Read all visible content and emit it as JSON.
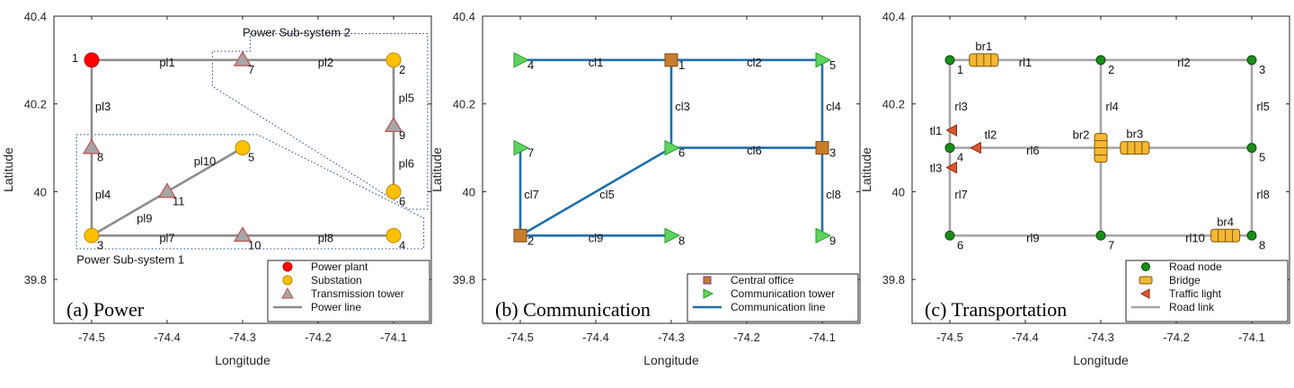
{
  "x_axis_label": "Longitude",
  "y_axis_label": "Latitude",
  "x_ticks": [
    -74.5,
    -74.4,
    -74.3,
    -74.2,
    -74.1
  ],
  "x_tick_labels": [
    "-74.5",
    "-74.4",
    "-74.3",
    "-74.2",
    "-74.1"
  ],
  "y_ticks": [
    40.4,
    40.2,
    40.0,
    39.8
  ],
  "y_tick_labels": [
    "40.4",
    "40.2",
    "40",
    "39.8"
  ],
  "x_range": [
    -74.55,
    -74.05
  ],
  "y_range": [
    39.7,
    40.4
  ],
  "colors": {
    "axis": "#262626",
    "power_line": "#8c8c8c",
    "plant": "#ff0000",
    "substation": "#ffc000",
    "tower_fill": "#a6a6a6",
    "tower_edge": "#c0504d",
    "comm_line": "#1f6fad",
    "central_office": "#c87d2c",
    "central_edge": "#7030a0",
    "comm_tower": "#5fd35f",
    "road_line": "#a6a6a6",
    "road_node": "#1a8c1a",
    "bridge": "#f4b183",
    "bridge_fill": "#f6b732",
    "traffic": "#e0562c",
    "subsystem_border": "#1f3f8f"
  },
  "panels": [
    {
      "id": "power",
      "caption": "(a) Power",
      "legend": [
        {
          "marker": "circle-red",
          "label": "Power plant"
        },
        {
          "marker": "circle-yellow",
          "label": "Substation"
        },
        {
          "marker": "triangle",
          "label": "Transmission tower"
        },
        {
          "marker": "line-gray",
          "label": "Power line"
        }
      ],
      "nodes": [
        {
          "id": "1",
          "type": "plant",
          "lon": -74.5,
          "lat": 40.3,
          "label_side": "left"
        },
        {
          "id": "2",
          "type": "substation",
          "lon": -74.1,
          "lat": 40.3,
          "label_side": "below-right"
        },
        {
          "id": "3",
          "type": "substation",
          "lon": -74.5,
          "lat": 39.9,
          "label_side": "below-right"
        },
        {
          "id": "4",
          "type": "substation",
          "lon": -74.1,
          "lat": 39.9,
          "label_side": "below-right"
        },
        {
          "id": "5",
          "type": "substation",
          "lon": -74.3,
          "lat": 40.1,
          "label_side": "below-right"
        },
        {
          "id": "6",
          "type": "substation",
          "lon": -74.1,
          "lat": 40.0,
          "label_side": "below-right"
        },
        {
          "id": "7",
          "type": "tower",
          "lon": -74.3,
          "lat": 40.3,
          "label_side": "below-right"
        },
        {
          "id": "8",
          "type": "tower",
          "lon": -74.5,
          "lat": 40.1,
          "label_side": "below-right"
        },
        {
          "id": "9",
          "type": "tower",
          "lon": -74.1,
          "lat": 40.15,
          "label_side": "below-right"
        },
        {
          "id": "10",
          "type": "tower",
          "lon": -74.3,
          "lat": 39.9,
          "label_side": "below-right"
        },
        {
          "id": "11",
          "type": "tower",
          "lon": -74.4,
          "lat": 40.0,
          "label_side": "below-right"
        }
      ],
      "links": [
        {
          "id": "pl1",
          "from": "1",
          "to": "7"
        },
        {
          "id": "pl2",
          "from": "7",
          "to": "2"
        },
        {
          "id": "pl3",
          "from": "1",
          "to": "8"
        },
        {
          "id": "pl4",
          "from": "8",
          "to": "3"
        },
        {
          "id": "pl5",
          "from": "2",
          "to": "9"
        },
        {
          "id": "pl6",
          "from": "9",
          "to": "6"
        },
        {
          "id": "pl7",
          "from": "3",
          "to": "10"
        },
        {
          "id": "pl8",
          "from": "10",
          "to": "4"
        },
        {
          "id": "pl9",
          "from": "3",
          "to": "11"
        },
        {
          "id": "pl10",
          "from": "11",
          "to": "5"
        }
      ],
      "link_labels": [
        {
          "text": "pl1",
          "lon": -74.4,
          "lat": 40.285
        },
        {
          "text": "pl2",
          "lon": -74.19,
          "lat": 40.285
        },
        {
          "text": "pl3",
          "lon": -74.485,
          "lat": 40.185
        },
        {
          "text": "pl4",
          "lon": -74.485,
          "lat": 39.985
        },
        {
          "text": "pl5",
          "lon": -74.083,
          "lat": 40.205
        },
        {
          "text": "pl6",
          "lon": -74.083,
          "lat": 40.055
        },
        {
          "text": "pl7",
          "lon": -74.4,
          "lat": 39.885
        },
        {
          "text": "pl8",
          "lon": -74.19,
          "lat": 39.885
        },
        {
          "text": "pl9",
          "lon": -74.43,
          "lat": 39.93
        },
        {
          "text": "pl10",
          "lon": -74.35,
          "lat": 40.06
        }
      ],
      "subsystems": [
        {
          "label": "Power Sub-system 2"
        },
        {
          "label": "Power Sub-system 1"
        }
      ]
    },
    {
      "id": "communication",
      "caption": "(b) Communication",
      "legend": [
        {
          "marker": "square-brown",
          "label": "Central office"
        },
        {
          "marker": "tri-right-green",
          "label": "Communication tower"
        },
        {
          "marker": "line-blue",
          "label": "Communication line"
        }
      ],
      "nodes": [
        {
          "id": "1",
          "type": "central",
          "lon": -74.3,
          "lat": 40.3
        },
        {
          "id": "2",
          "type": "central",
          "lon": -74.5,
          "lat": 39.9
        },
        {
          "id": "3",
          "type": "central",
          "lon": -74.1,
          "lat": 40.1
        },
        {
          "id": "4",
          "type": "ctower",
          "lon": -74.5,
          "lat": 40.3
        },
        {
          "id": "5",
          "type": "ctower",
          "lon": -74.1,
          "lat": 40.3
        },
        {
          "id": "6",
          "type": "ctower",
          "lon": -74.3,
          "lat": 40.1
        },
        {
          "id": "7",
          "type": "ctower",
          "lon": -74.5,
          "lat": 40.1
        },
        {
          "id": "8",
          "type": "ctower",
          "lon": -74.3,
          "lat": 39.9
        },
        {
          "id": "9",
          "type": "ctower",
          "lon": -74.1,
          "lat": 39.9
        }
      ],
      "links": [
        {
          "id": "cl1",
          "from": "4",
          "to": "1"
        },
        {
          "id": "cl2",
          "from": "1",
          "to": "5"
        },
        {
          "id": "cl3",
          "from": "1",
          "to": "6"
        },
        {
          "id": "cl4",
          "from": "5",
          "to": "3"
        },
        {
          "id": "cl5",
          "from": "2",
          "to": "6"
        },
        {
          "id": "cl6",
          "from": "6",
          "to": "3"
        },
        {
          "id": "cl7",
          "from": "2",
          "to": "7"
        },
        {
          "id": "cl8",
          "from": "3",
          "to": "9"
        },
        {
          "id": "cl9",
          "from": "2",
          "to": "8"
        }
      ],
      "link_labels": [
        {
          "text": "cl1",
          "lon": -74.4,
          "lat": 40.285
        },
        {
          "text": "cl2",
          "lon": -74.19,
          "lat": 40.285
        },
        {
          "text": "cl3",
          "lon": -74.285,
          "lat": 40.185
        },
        {
          "text": "cl4",
          "lon": -74.085,
          "lat": 40.185
        },
        {
          "text": "cl5",
          "lon": -74.385,
          "lat": 39.985
        },
        {
          "text": "cl6",
          "lon": -74.19,
          "lat": 40.085
        },
        {
          "text": "cl7",
          "lon": -74.485,
          "lat": 39.985
        },
        {
          "text": "cl8",
          "lon": -74.085,
          "lat": 39.985
        },
        {
          "text": "cl9",
          "lon": -74.4,
          "lat": 39.885
        }
      ]
    },
    {
      "id": "transportation",
      "caption": "(c) Transportation",
      "legend": [
        {
          "marker": "circle-green",
          "label": "Road node"
        },
        {
          "marker": "bridge",
          "label": "Bridge"
        },
        {
          "marker": "tri-left-red",
          "label": "Traffic light"
        },
        {
          "marker": "line-gray",
          "label": "Road link"
        }
      ],
      "nodes": [
        {
          "id": "1",
          "type": "road",
          "lon": -74.5,
          "lat": 40.3
        },
        {
          "id": "2",
          "type": "road",
          "lon": -74.3,
          "lat": 40.3
        },
        {
          "id": "3",
          "type": "road",
          "lon": -74.1,
          "lat": 40.3
        },
        {
          "id": "4",
          "type": "road",
          "lon": -74.5,
          "lat": 40.1
        },
        {
          "id": "5",
          "type": "road",
          "lon": -74.1,
          "lat": 40.1
        },
        {
          "id": "6",
          "type": "road",
          "lon": -74.5,
          "lat": 39.9
        },
        {
          "id": "7",
          "type": "road",
          "lon": -74.3,
          "lat": 39.9
        },
        {
          "id": "8",
          "type": "road",
          "lon": -74.1,
          "lat": 39.9
        }
      ],
      "links": [
        {
          "id": "rl1",
          "from": "1",
          "to": "2"
        },
        {
          "id": "rl2",
          "from": "2",
          "to": "3"
        },
        {
          "id": "rl3",
          "from": "1",
          "to": "4"
        },
        {
          "id": "rl4",
          "from": "2",
          "to": "7"
        },
        {
          "id": "rl5",
          "from": "3",
          "to": "5"
        },
        {
          "id": "rl6",
          "from": "4",
          "to": "5"
        },
        {
          "id": "rl7",
          "from": "4",
          "to": "6"
        },
        {
          "id": "rl8",
          "from": "5",
          "to": "8"
        },
        {
          "id": "rl9",
          "from": "6",
          "to": "7"
        },
        {
          "id": "rl10",
          "from": "7",
          "to": "8"
        }
      ],
      "link_labels": [
        {
          "text": "rl1",
          "lon": -74.4,
          "lat": 40.285
        },
        {
          "text": "rl2",
          "lon": -74.19,
          "lat": 40.285
        },
        {
          "text": "rl3",
          "lon": -74.485,
          "lat": 40.185
        },
        {
          "text": "rl4",
          "lon": -74.285,
          "lat": 40.185
        },
        {
          "text": "rl5",
          "lon": -74.085,
          "lat": 40.185
        },
        {
          "text": "rl6",
          "lon": -74.39,
          "lat": 40.085
        },
        {
          "text": "rl7",
          "lon": -74.485,
          "lat": 39.985
        },
        {
          "text": "rl8",
          "lon": -74.085,
          "lat": 39.985
        },
        {
          "text": "rl9",
          "lon": -74.39,
          "lat": 39.885
        },
        {
          "text": "rl10",
          "lon": -74.175,
          "lat": 39.885
        }
      ],
      "bridges": [
        {
          "id": "br1",
          "lon": -74.455,
          "lat": 40.3,
          "orient": "h"
        },
        {
          "id": "br2",
          "lon": -74.3,
          "lat": 40.1,
          "orient": "v"
        },
        {
          "id": "br3",
          "lon": -74.255,
          "lat": 40.1,
          "orient": "h"
        },
        {
          "id": "br4",
          "lon": -74.135,
          "lat": 39.9,
          "orient": "h"
        }
      ],
      "traffic_lights": [
        {
          "id": "tl1",
          "lon": -74.497,
          "lat": 40.14
        },
        {
          "id": "tl2",
          "lon": -74.465,
          "lat": 40.1
        },
        {
          "id": "tl3",
          "lon": -74.497,
          "lat": 40.055
        }
      ]
    }
  ]
}
